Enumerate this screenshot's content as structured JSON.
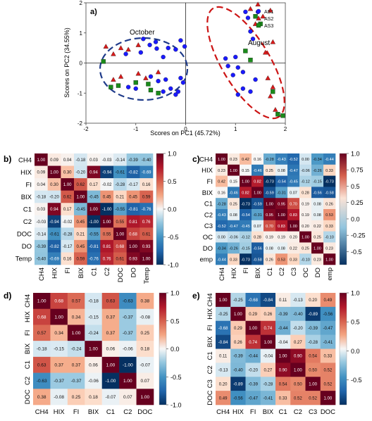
{
  "chart_data": [
    {
      "panel": "a)",
      "type": "scatter",
      "xlabel": "Scores on PC1 (45.72%)",
      "ylabel": "Scores on PC2 (34.55%)",
      "xlim": [
        -2,
        2
      ],
      "ylim": [
        -2,
        2
      ],
      "xticks": [
        -2,
        -1,
        0,
        1,
        2
      ],
      "yticks": [
        -2,
        -1,
        0,
        1,
        2
      ],
      "zero_lines": true,
      "legend_position": "top-right",
      "annotations": [
        "October",
        "August"
      ],
      "series": [
        {
          "name": "AS1",
          "color": "#1a1aff",
          "marker": "circle",
          "points": [
            [
              -0.85,
              0.8
            ],
            [
              -0.6,
              0.7
            ],
            [
              -0.72,
              0.6
            ],
            [
              -0.58,
              0.48
            ],
            [
              -0.35,
              0.5
            ],
            [
              -0.2,
              0.45
            ],
            [
              -0.1,
              0.75
            ],
            [
              -0.02,
              0.55
            ],
            [
              -1.2,
              0.3
            ],
            [
              -0.9,
              0.35
            ],
            [
              -0.45,
              0.2
            ],
            [
              -0.7,
              -0.45
            ],
            [
              -0.55,
              -0.6
            ],
            [
              -0.4,
              -0.55
            ],
            [
              -0.45,
              -0.95
            ],
            [
              -0.3,
              -0.85
            ],
            [
              -0.15,
              -0.95
            ],
            [
              -0.2,
              -1.05
            ],
            [
              -0.05,
              -0.65
            ],
            [
              -0.1,
              -0.5
            ],
            [
              -1.15,
              -0.8
            ],
            [
              -1.0,
              -0.85
            ],
            [
              1.2,
              1.7
            ],
            [
              1.25,
              1.5
            ],
            [
              1.45,
              1.7
            ],
            [
              1.3,
              1.05
            ],
            [
              1.35,
              0.8
            ],
            [
              0.8,
              0.15
            ],
            [
              1.0,
              0.2
            ],
            [
              0.85,
              -0.1
            ],
            [
              1.05,
              -0.15
            ],
            [
              0.95,
              -0.4
            ],
            [
              1.15,
              -0.3
            ],
            [
              1.15,
              -0.85
            ],
            [
              1.3,
              -0.95
            ],
            [
              1.05,
              -1.05
            ],
            [
              1.4,
              -0.55
            ]
          ]
        },
        {
          "name": "AS2",
          "color": "#d91a1a",
          "marker": "triangle",
          "points": [
            [
              -1.6,
              0.55
            ],
            [
              -1.45,
              0.3
            ],
            [
              -1.3,
              0.5
            ],
            [
              -1.15,
              0.45
            ],
            [
              -0.95,
              0.6
            ],
            [
              -1.45,
              -0.55
            ],
            [
              -1.3,
              -0.45
            ],
            [
              -0.8,
              -0.5
            ],
            [
              -0.95,
              -0.35
            ],
            [
              -0.55,
              -0.3
            ],
            [
              1.45,
              1.95
            ],
            [
              1.7,
              1.75
            ],
            [
              1.55,
              1.55
            ],
            [
              1.4,
              1.3
            ],
            [
              1.3,
              1.8
            ],
            [
              1.75,
              0.7
            ],
            [
              1.6,
              0.35
            ],
            [
              1.65,
              -0.5
            ],
            [
              1.75,
              -0.8
            ],
            [
              1.7,
              -1.1
            ],
            [
              1.8,
              -1.55
            ]
          ]
        },
        {
          "name": "AS3",
          "color": "#1a8a1a",
          "marker": "square",
          "points": [
            [
              -1.65,
              0.05
            ],
            [
              -1.5,
              -0.8
            ],
            [
              -1.35,
              -0.75
            ],
            [
              -1.0,
              -0.65
            ],
            [
              -0.75,
              -0.7
            ],
            [
              -0.7,
              -0.9
            ],
            [
              -0.55,
              -1.0
            ],
            [
              1.4,
              1.55
            ],
            [
              1.5,
              1.3
            ],
            [
              1.2,
              0.4
            ],
            [
              1.3,
              0.1
            ],
            [
              1.75,
              -0.95
            ],
            [
              1.85,
              -1.7
            ],
            [
              1.95,
              -1.75
            ]
          ]
        }
      ]
    },
    {
      "panel": "b)",
      "type": "heatmap",
      "labels": [
        "CH4",
        "HIX",
        "FI",
        "BIX",
        "C1",
        "C2",
        "DOC",
        "DO",
        "Temp"
      ],
      "colorbar_ticks": [
        1.0,
        0.5,
        0.0,
        -0.5,
        -1.0
      ],
      "matrix": [
        [
          1.0,
          0.09,
          0.04,
          -0.18,
          0.03,
          -0.03,
          -0.14,
          -0.39,
          -0.4
        ],
        [
          0.09,
          1.0,
          0.3,
          -0.2,
          0.94,
          -0.94,
          -0.61,
          -0.82,
          -0.69
        ],
        [
          0.04,
          0.3,
          1.0,
          0.62,
          0.17,
          -0.02,
          -0.28,
          -0.17,
          0.16
        ],
        [
          -0.18,
          -0.2,
          0.62,
          1.0,
          -0.45,
          0.45,
          0.21,
          0.45,
          0.59
        ],
        [
          0.03,
          0.94,
          0.17,
          -0.45,
          1.0,
          -1.0,
          -0.55,
          -0.81,
          -0.76
        ],
        [
          -0.03,
          -0.94,
          -0.02,
          0.45,
          -1.0,
          1.0,
          0.55,
          0.81,
          0.76
        ],
        [
          -0.14,
          -0.61,
          -0.28,
          0.21,
          -0.55,
          0.55,
          1.0,
          0.68,
          0.61
        ],
        [
          -0.39,
          -0.82,
          -0.17,
          0.45,
          -0.81,
          0.81,
          0.68,
          1.0,
          0.93
        ],
        [
          -0.4,
          -0.69,
          0.16,
          0.59,
          -0.76,
          0.76,
          0.61,
          0.93,
          1.0
        ]
      ]
    },
    {
      "panel": "c)",
      "type": "heatmap",
      "labels": [
        "CH4",
        "HIX",
        "FI",
        "BIX",
        "C1",
        "C2",
        "C3",
        "DOC",
        "DO",
        "Temp"
      ],
      "tick_labels": [
        "CH4",
        "HIX",
        "FI",
        "BIX",
        "C1",
        "C2",
        "C3",
        "OC",
        "DO",
        "emp"
      ],
      "colorbar_ticks": [
        1.0,
        0.75,
        0.5,
        0.25,
        0.0,
        -0.25,
        -0.5
      ],
      "matrix": [
        [
          1.0,
          0.23,
          0.42,
          0.16,
          -0.28,
          -0.43,
          -0.52,
          0.0,
          -0.34,
          -0.44
        ],
        [
          0.23,
          1.0,
          0.15,
          -0.46,
          0.25,
          0.08,
          -0.47,
          -0.06,
          -0.26,
          0.33
        ],
        [
          0.42,
          0.15,
          1.0,
          0.82,
          -0.73,
          -0.54,
          -0.45,
          -0.12,
          -0.15,
          -0.73
        ],
        [
          0.16,
          -0.46,
          0.82,
          1.0,
          -0.59,
          -0.31,
          0.07,
          0.28,
          -0.56,
          -0.58
        ],
        [
          -0.28,
          0.25,
          -0.73,
          -0.59,
          1.0,
          0.95,
          0.7,
          0.19,
          0.08,
          0.26
        ],
        [
          -0.43,
          0.08,
          -0.54,
          -0.31,
          0.95,
          1.0,
          0.83,
          0.19,
          0.08,
          0.53
        ],
        [
          -0.52,
          -0.47,
          -0.45,
          0.07,
          0.7,
          0.83,
          1.0,
          0.2,
          0.22,
          0.33
        ],
        [
          0.0,
          -0.06,
          -0.12,
          0.28,
          0.19,
          0.19,
          0.2,
          1.0,
          0.25,
          -0.1
        ],
        [
          -0.34,
          -0.26,
          -0.15,
          -0.56,
          0.08,
          0.08,
          0.22,
          0.25,
          1.0,
          0.23
        ],
        [
          -0.44,
          0.33,
          -0.73,
          -0.58,
          0.26,
          0.53,
          0.33,
          -0.1,
          0.23,
          1.0
        ]
      ]
    },
    {
      "panel": "d)",
      "type": "heatmap",
      "labels": [
        "CH4",
        "HIX",
        "FI",
        "BIX",
        "C1",
        "C2",
        "DOC"
      ],
      "colorbar_ticks": [
        1.0,
        0.5,
        0.0,
        -0.5,
        -1.0
      ],
      "matrix": [
        [
          1.0,
          0.68,
          0.57,
          -0.18,
          0.63,
          -0.63,
          0.38
        ],
        [
          0.68,
          1.0,
          0.34,
          -0.15,
          0.37,
          -0.37,
          -0.08
        ],
        [
          0.57,
          0.34,
          1.0,
          -0.24,
          0.37,
          -0.37,
          0.25
        ],
        [
          -0.18,
          -0.15,
          -0.24,
          1.0,
          0.06,
          -0.06,
          0.18
        ],
        [
          0.63,
          0.37,
          0.37,
          0.06,
          1.0,
          -1.0,
          -0.07
        ],
        [
          -0.63,
          -0.37,
          -0.37,
          -0.06,
          -1.0,
          1.0,
          0.07
        ],
        [
          0.38,
          -0.08,
          0.25,
          0.18,
          -0.07,
          0.07,
          1.0
        ]
      ]
    },
    {
      "panel": "e)",
      "type": "heatmap",
      "labels": [
        "CH4",
        "HIX",
        "FI",
        "BIX",
        "C1",
        "C2",
        "C3",
        "DOC"
      ],
      "colorbar_ticks": [
        1.0,
        0.5,
        0.0,
        -0.5
      ],
      "matrix": [
        [
          1.0,
          -0.25,
          -0.68,
          -0.84,
          0.11,
          -0.13,
          0.2,
          0.49
        ],
        [
          -0.25,
          1.0,
          0.29,
          0.26,
          -0.39,
          -0.4,
          -0.89,
          -0.56
        ],
        [
          -0.68,
          0.29,
          1.0,
          0.74,
          -0.44,
          -0.2,
          -0.39,
          -0.47
        ],
        [
          -0.84,
          0.26,
          0.74,
          1.0,
          -0.04,
          0.27,
          -0.28,
          -0.41
        ],
        [
          0.11,
          -0.39,
          -0.44,
          -0.04,
          1.0,
          0.9,
          0.54,
          0.33
        ],
        [
          -0.13,
          -0.4,
          -0.2,
          0.27,
          0.9,
          1.0,
          0.5,
          0.52
        ],
        [
          0.2,
          -0.89,
          -0.39,
          -0.28,
          0.54,
          0.5,
          1.0,
          0.52
        ],
        [
          0.49,
          -0.56,
          -0.47,
          -0.41,
          0.33,
          0.52,
          0.52,
          1.0
        ]
      ]
    }
  ]
}
